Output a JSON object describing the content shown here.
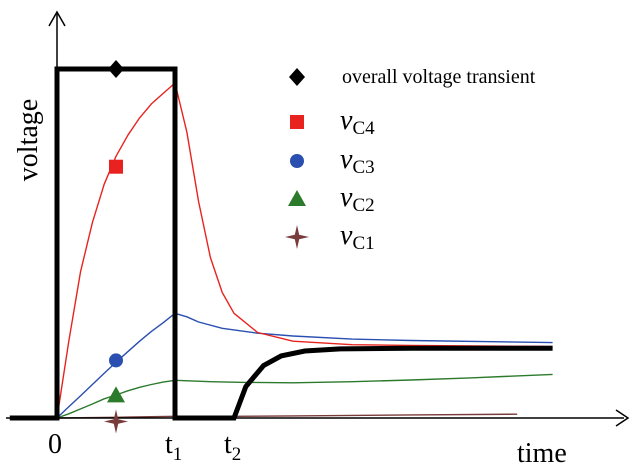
{
  "chart_data": {
    "type": "line",
    "title": "",
    "xlabel": "time",
    "ylabel": "voltage",
    "x_ticks": [
      {
        "main": "0",
        "sub": ""
      },
      {
        "main": "t",
        "sub": "1"
      },
      {
        "main": "t",
        "sub": "2"
      }
    ],
    "xlim": [
      0,
      4.8
    ],
    "ylim": [
      0,
      1.08
    ],
    "grid": false,
    "legend_position": "top-right",
    "t1": 1.0,
    "t2": 1.5,
    "marker_time": 0.5,
    "series": [
      {
        "key": "overall",
        "legend_main": "overall voltage transient",
        "legend_sub": "",
        "color": "#000000",
        "marker": "diamond",
        "points": [
          [
            -0.4,
            0
          ],
          [
            0,
            0
          ],
          [
            0,
            1.0
          ],
          [
            1.0,
            1.0
          ],
          [
            1.0,
            0
          ],
          [
            1.5,
            0
          ],
          [
            1.6,
            0.09
          ],
          [
            1.75,
            0.15
          ],
          [
            1.9,
            0.178
          ],
          [
            2.1,
            0.192
          ],
          [
            2.4,
            0.198
          ],
          [
            3.0,
            0.2
          ],
          [
            4.2,
            0.2
          ]
        ]
      },
      {
        "key": "vC4",
        "legend_main": "v",
        "legend_sub": "C4",
        "color": "#e8231f",
        "marker": "square",
        "points": [
          [
            0,
            0
          ],
          [
            0.1,
            0.22
          ],
          [
            0.2,
            0.42
          ],
          [
            0.3,
            0.56
          ],
          [
            0.4,
            0.67
          ],
          [
            0.5,
            0.75
          ],
          [
            0.6,
            0.81
          ],
          [
            0.7,
            0.86
          ],
          [
            0.8,
            0.9
          ],
          [
            0.9,
            0.93
          ],
          [
            1.0,
            0.96
          ],
          [
            1.1,
            0.82
          ],
          [
            1.2,
            0.62
          ],
          [
            1.3,
            0.46
          ],
          [
            1.4,
            0.36
          ],
          [
            1.5,
            0.3
          ],
          [
            1.7,
            0.245
          ],
          [
            2.0,
            0.22
          ],
          [
            2.5,
            0.21
          ],
          [
            3.0,
            0.208
          ],
          [
            4.2,
            0.205
          ]
        ]
      },
      {
        "key": "vC3",
        "legend_main": "v",
        "legend_sub": "C3",
        "color": "#2a4fb0",
        "marker": "circle",
        "points": [
          [
            0,
            0
          ],
          [
            0.1,
            0.032
          ],
          [
            0.2,
            0.064
          ],
          [
            0.3,
            0.096
          ],
          [
            0.4,
            0.128
          ],
          [
            0.5,
            0.16
          ],
          [
            0.6,
            0.19
          ],
          [
            0.7,
            0.22
          ],
          [
            0.8,
            0.248
          ],
          [
            0.9,
            0.273
          ],
          [
            1.0,
            0.3
          ],
          [
            1.1,
            0.29
          ],
          [
            1.2,
            0.275
          ],
          [
            1.4,
            0.257
          ],
          [
            1.7,
            0.243
          ],
          [
            2.0,
            0.235
          ],
          [
            2.5,
            0.226
          ],
          [
            3.0,
            0.222
          ],
          [
            4.2,
            0.216
          ]
        ]
      },
      {
        "key": "vC2",
        "legend_main": "v",
        "legend_sub": "C2",
        "color": "#2c7a2c",
        "marker": "triangle",
        "points": [
          [
            0,
            0
          ],
          [
            0.1,
            0.012
          ],
          [
            0.2,
            0.026
          ],
          [
            0.3,
            0.04
          ],
          [
            0.4,
            0.055
          ],
          [
            0.5,
            0.066
          ],
          [
            0.6,
            0.078
          ],
          [
            0.7,
            0.088
          ],
          [
            0.8,
            0.096
          ],
          [
            0.9,
            0.103
          ],
          [
            1.0,
            0.108
          ],
          [
            1.3,
            0.104
          ],
          [
            1.6,
            0.102
          ],
          [
            2.0,
            0.101
          ],
          [
            2.5,
            0.104
          ],
          [
            3.0,
            0.109
          ],
          [
            3.5,
            0.115
          ],
          [
            4.2,
            0.125
          ]
        ]
      },
      {
        "key": "vC1",
        "legend_main": "v",
        "legend_sub": "C1",
        "color": "#7a3b3b",
        "marker": "star",
        "points": [
          [
            0,
            0
          ],
          [
            0.5,
            0.002
          ],
          [
            1.0,
            0.005
          ],
          [
            1.5,
            0.005
          ],
          [
            2.0,
            0.006
          ],
          [
            3.0,
            0.009
          ],
          [
            3.9,
            0.011
          ]
        ]
      }
    ],
    "marker_values": {
      "overall": 1.0,
      "vC4": 0.72,
      "vC3": 0.165,
      "vC2": 0.065,
      "vC1": -0.01
    }
  }
}
